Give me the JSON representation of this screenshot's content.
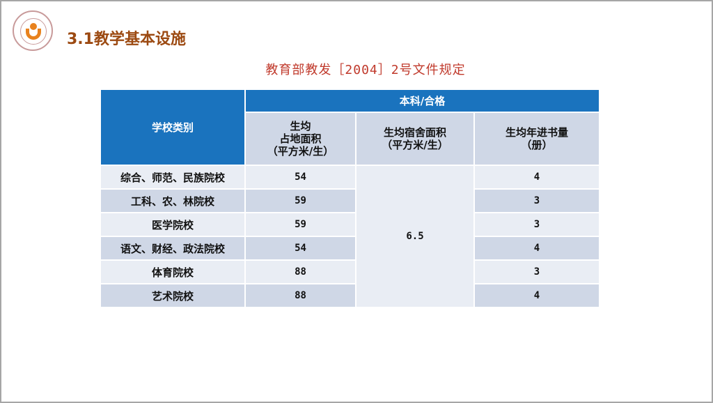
{
  "slide": {
    "title": "3.1教学基本设施",
    "subtitle": "教育部教发［2004］2号文件规定"
  },
  "table": {
    "header_category": "学校类别",
    "header_group": "本科/合格",
    "columns": [
      [
        "生均",
        "占地面积",
        "（平方米/生）"
      ],
      [
        "生均宿舍面积",
        "（平方米/生）"
      ],
      [
        "生均年进书量",
        "（册）"
      ]
    ],
    "dormitory_area": "6.5",
    "rows": [
      {
        "category": "综合、师范、民族院校",
        "land_area": "54",
        "books": "4"
      },
      {
        "category": "工科、农、林院校",
        "land_area": "59",
        "books": "3"
      },
      {
        "category": "医学院校",
        "land_area": "59",
        "books": "3"
      },
      {
        "category": "语文、财经、政法院校",
        "land_area": "54",
        "books": "4"
      },
      {
        "category": "体育院校",
        "land_area": "88",
        "books": "3"
      },
      {
        "category": "艺术院校",
        "land_area": "88",
        "books": "4"
      }
    ]
  },
  "colors": {
    "header": "#1a73be",
    "title": "#9c4a12",
    "subtitle": "#c0392b"
  }
}
